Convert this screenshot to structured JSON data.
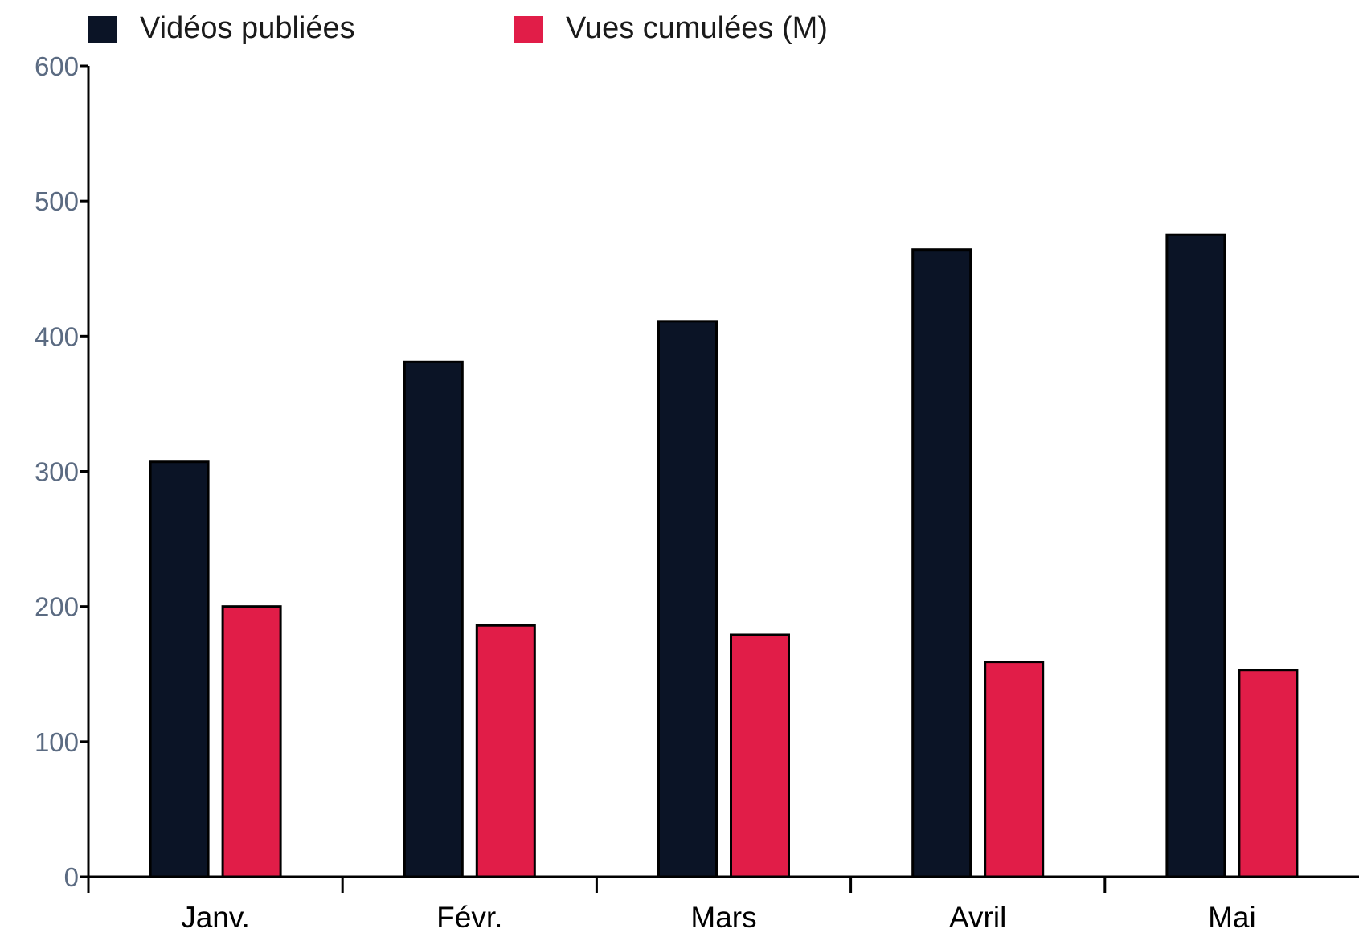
{
  "chart_data": {
    "type": "bar",
    "categories": [
      "Janv.",
      "Févr.",
      "Mars",
      "Avril",
      "Mai"
    ],
    "series": [
      {
        "name": "Vidéos publiées",
        "values": [
          307,
          381,
          411,
          464,
          475
        ],
        "color": "#0b1426"
      },
      {
        "name": "Vues cumulées (M)",
        "values": [
          200,
          186,
          179,
          159,
          153
        ],
        "color": "#e11d48"
      }
    ],
    "title": "",
    "xlabel": "",
    "ylabel": "",
    "ylim": [
      0,
      600
    ],
    "yticks": [
      0,
      100,
      200,
      300,
      400,
      500,
      600
    ],
    "grid": false,
    "legend": "top-left",
    "axis_color": "#000000",
    "ytick_label_color": "#5b6b82",
    "xtick_label_color": "#000000"
  }
}
